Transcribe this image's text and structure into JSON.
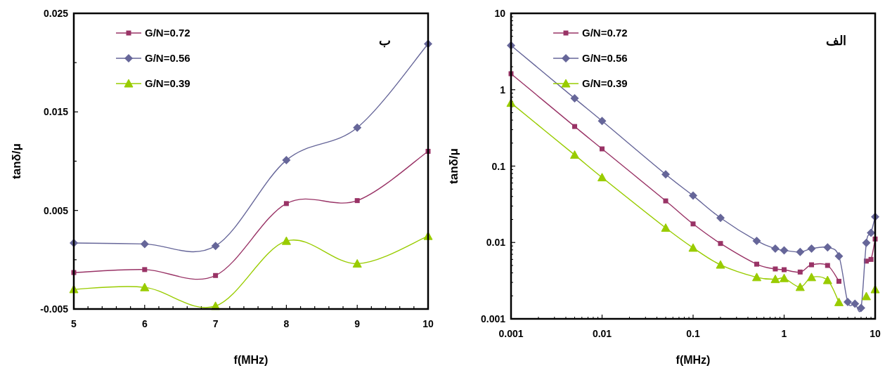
{
  "chart_data": [
    {
      "type": "line",
      "xlabel": "f(MHz)",
      "ylabel": "tanδ/μ",
      "annotations": [
        "ب"
      ],
      "legend": "top left",
      "xlim": [
        5,
        10
      ],
      "ylim": [
        -0.005,
        0.025
      ],
      "xticks": [
        5,
        {
          "value": 5.2,
          "label": null
        },
        {
          "value": 5.4,
          "label": null
        },
        {
          "value": 5.6,
          "label": null
        },
        {
          "value": 5.8,
          "label": null
        },
        6,
        {
          "value": 6.2,
          "label": null
        },
        {
          "value": 6.4,
          "label": null
        },
        {
          "value": 6.6,
          "label": null
        },
        {
          "value": 6.8,
          "label": null
        },
        7,
        {
          "value": 7.2,
          "label": null
        },
        {
          "value": 7.4,
          "label": null
        },
        {
          "value": 7.6,
          "label": null
        },
        {
          "value": 7.8,
          "label": null
        },
        8,
        {
          "value": 8.2,
          "label": null
        },
        {
          "value": 8.4,
          "label": null
        },
        {
          "value": 8.6,
          "label": null
        },
        {
          "value": 8.8,
          "label": null
        },
        9,
        {
          "value": 9.2,
          "label": null
        },
        {
          "value": 9.4,
          "label": null
        },
        {
          "value": 9.6,
          "label": null
        },
        {
          "value": 9.8,
          "label": null
        },
        10
      ],
      "yticks": [
        -0.005,
        {
          "value": 0,
          "label": null
        },
        0.005,
        {
          "value": 0.01,
          "label": null
        },
        0.015,
        {
          "value": 0.02,
          "label": null
        },
        0.025
      ],
      "x": [
        5,
        6,
        7,
        8,
        9,
        10
      ],
      "series": [
        {
          "name": "G/N=0.72",
          "color": "#993366",
          "marker": "square",
          "values": [
            -0.0013,
            -0.001,
            -0.0016,
            0.0057,
            0.006,
            0.011
          ]
        },
        {
          "name": "G/N=0.56",
          "color": "#666699",
          "marker": "diamond",
          "values": [
            0.0017,
            0.0016,
            0.0014,
            0.0101,
            0.0134,
            0.0219
          ]
        },
        {
          "name": "G/N=0.39",
          "color": "#99cc00",
          "marker": "triangle",
          "values": [
            -0.003,
            -0.0028,
            -0.0047,
            0.0019,
            -0.0004,
            0.0024
          ]
        }
      ]
    },
    {
      "type": "line",
      "xlabel": "f(MHz)",
      "ylabel": "tanδ/μ",
      "annotations": [
        "الف"
      ],
      "legend": "top left",
      "log": "xy",
      "xlim": [
        0.001,
        10
      ],
      "ylim": [
        0.001,
        10
      ],
      "xticks": [
        0.001,
        0.01,
        0.1,
        1,
        10
      ],
      "yticks": [
        0.001,
        0.01,
        0.1,
        1,
        10
      ],
      "x": [
        0.001,
        0.005,
        0.01,
        0.05,
        0.1,
        0.2,
        0.5,
        0.8,
        1,
        1.5,
        2,
        3,
        4,
        5,
        6,
        7,
        8,
        9,
        10
      ],
      "series": [
        {
          "name": "G/N=0.72",
          "color": "#993366",
          "marker": "square",
          "values": [
            1.62,
            0.33,
            0.168,
            0.035,
            0.0175,
            0.0097,
            0.0052,
            0.0045,
            0.0044,
            0.0041,
            0.0051,
            0.005,
            0.0031,
            null,
            null,
            null,
            0.0057,
            0.006,
            0.0111
          ]
        },
        {
          "name": "G/N=0.56",
          "color": "#666699",
          "marker": "diamond",
          "values": [
            3.8,
            0.77,
            0.39,
            0.078,
            0.041,
            0.021,
            0.0105,
            0.0083,
            0.0079,
            0.0075,
            0.0083,
            0.0086,
            0.0066,
            0.00166,
            0.00158,
            0.00139,
            0.0099,
            0.0134,
            0.0217
          ]
        },
        {
          "name": "G/N=0.39",
          "color": "#99cc00",
          "marker": "triangle",
          "values": [
            0.67,
            0.14,
            0.071,
            0.0155,
            0.0085,
            0.0051,
            0.0035,
            0.0033,
            0.0034,
            0.0026,
            0.0035,
            0.0032,
            0.00165,
            null,
            null,
            null,
            0.00197,
            null,
            0.00243
          ]
        }
      ]
    }
  ]
}
